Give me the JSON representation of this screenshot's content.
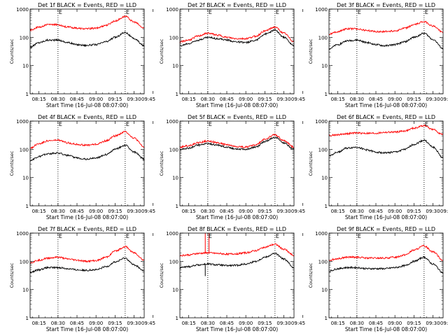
{
  "figure": {
    "ylabel": "Counts/sec",
    "xlabel": "Start Time (16-Jul-08 08:07:00)",
    "tick_labels": [
      "08:15",
      "08:30",
      "08:45",
      "09:00",
      "09:15",
      "09:30",
      "09:45"
    ],
    "y_tick_labels": [
      "1",
      "10",
      "100",
      "1000"
    ],
    "marker_letters": [
      "E",
      "E"
    ],
    "colors": {
      "events": "#000000",
      "lld": "#ff0000",
      "marker": "#000000"
    }
  },
  "chart_data": [
    {
      "type": "line",
      "title": "Det 1f BLACK = Events, RED = LLD",
      "xlim_minutes": [
        8,
        98
      ],
      "ylim": [
        1,
        1000
      ],
      "y_scale": "log",
      "dotted_lines_minutes": [
        30,
        83
      ],
      "x_ticks_minutes": [
        15,
        30,
        45,
        60,
        75,
        90,
        105
      ],
      "series": [
        {
          "name": "Events",
          "color": "#000000",
          "x_minutes": [
            8,
            15,
            22,
            30,
            38,
            45,
            52,
            60,
            68,
            75,
            83,
            90,
            98
          ],
          "values": [
            45,
            65,
            80,
            80,
            65,
            55,
            52,
            55,
            70,
            100,
            150,
            90,
            50
          ]
        },
        {
          "name": "LLD",
          "color": "#ff0000",
          "x_minutes": [
            8,
            15,
            22,
            30,
            38,
            45,
            52,
            60,
            68,
            75,
            83,
            90,
            98
          ],
          "values": [
            180,
            230,
            280,
            280,
            230,
            210,
            200,
            210,
            270,
            380,
            550,
            350,
            210
          ]
        }
      ]
    },
    {
      "type": "line",
      "title": "Det 2f BLACK = Events, RED = LLD",
      "xlim_minutes": [
        8,
        98
      ],
      "ylim": [
        1,
        1000
      ],
      "y_scale": "log",
      "dotted_lines_minutes": [
        30,
        83
      ],
      "x_ticks_minutes": [
        15,
        30,
        45,
        60,
        75,
        90,
        105
      ],
      "series": [
        {
          "name": "Events",
          "color": "#000000",
          "x_minutes": [
            8,
            15,
            22,
            30,
            38,
            45,
            52,
            60,
            68,
            75,
            83,
            90,
            98
          ],
          "values": [
            50,
            60,
            80,
            100,
            90,
            80,
            70,
            65,
            80,
            130,
            180,
            100,
            50
          ]
        },
        {
          "name": "LLD",
          "color": "#ff0000",
          "x_minutes": [
            8,
            15,
            22,
            30,
            38,
            45,
            52,
            60,
            68,
            75,
            83,
            90,
            98
          ],
          "values": [
            70,
            80,
            110,
            140,
            120,
            100,
            90,
            90,
            110,
            170,
            230,
            140,
            70
          ]
        }
      ]
    },
    {
      "type": "line",
      "title": "Det 3f BLACK = Events, RED = LLD",
      "xlim_minutes": [
        8,
        98
      ],
      "ylim": [
        1,
        1000
      ],
      "y_scale": "log",
      "dotted_lines_minutes": [
        30,
        83
      ],
      "x_ticks_minutes": [
        15,
        30,
        45,
        60,
        75,
        90,
        105
      ],
      "series": [
        {
          "name": "Events",
          "color": "#000000",
          "x_minutes": [
            8,
            15,
            22,
            30,
            38,
            45,
            52,
            60,
            68,
            75,
            83,
            90,
            98
          ],
          "values": [
            40,
            55,
            75,
            80,
            65,
            55,
            50,
            55,
            70,
            100,
            140,
            85,
            40
          ]
        },
        {
          "name": "LLD",
          "color": "#ff0000",
          "x_minutes": [
            8,
            15,
            22,
            30,
            38,
            45,
            52,
            60,
            68,
            75,
            83,
            90,
            98
          ],
          "values": [
            130,
            160,
            200,
            200,
            175,
            160,
            160,
            170,
            210,
            280,
            360,
            250,
            150
          ]
        }
      ]
    },
    {
      "type": "line",
      "title": "Det 4f BLACK = Events, RED = LLD",
      "xlim_minutes": [
        8,
        98
      ],
      "ylim": [
        1,
        1000
      ],
      "y_scale": "log",
      "dotted_lines_minutes": [
        30,
        83
      ],
      "x_ticks_minutes": [
        15,
        30,
        45,
        60,
        75,
        90,
        105
      ],
      "series": [
        {
          "name": "Events",
          "color": "#000000",
          "x_minutes": [
            8,
            15,
            22,
            30,
            38,
            45,
            52,
            60,
            68,
            75,
            83,
            90,
            98
          ],
          "values": [
            40,
            55,
            70,
            75,
            60,
            50,
            45,
            50,
            65,
            100,
            140,
            80,
            45
          ]
        },
        {
          "name": "LLD",
          "color": "#ff0000",
          "x_minutes": [
            8,
            15,
            22,
            30,
            38,
            45,
            52,
            60,
            68,
            75,
            83,
            90,
            98
          ],
          "values": [
            110,
            160,
            200,
            210,
            170,
            150,
            140,
            150,
            200,
            300,
            420,
            250,
            120
          ]
        }
      ]
    },
    {
      "type": "line",
      "title": "Det 5f BLACK = Events, RED = LLD",
      "xlim_minutes": [
        8,
        98
      ],
      "ylim": [
        1,
        1000
      ],
      "y_scale": "log",
      "dotted_lines_minutes": [
        30,
        83
      ],
      "x_ticks_minutes": [
        15,
        30,
        45,
        60,
        75,
        90,
        105
      ],
      "series": [
        {
          "name": "Events",
          "color": "#000000",
          "x_minutes": [
            8,
            15,
            22,
            30,
            38,
            45,
            52,
            60,
            68,
            75,
            83,
            90,
            98
          ],
          "values": [
            100,
            110,
            140,
            160,
            140,
            120,
            105,
            100,
            120,
            190,
            270,
            170,
            100
          ]
        },
        {
          "name": "LLD",
          "color": "#ff0000",
          "x_minutes": [
            8,
            15,
            22,
            30,
            38,
            45,
            52,
            60,
            68,
            75,
            83,
            90,
            98
          ],
          "values": [
            120,
            135,
            170,
            200,
            170,
            145,
            125,
            120,
            145,
            230,
            330,
            200,
            120
          ]
        }
      ]
    },
    {
      "type": "line",
      "title": "Det 6f BLACK = Events, RED = LLD",
      "xlim_minutes": [
        8,
        98
      ],
      "ylim": [
        1,
        1000
      ],
      "y_scale": "log",
      "dotted_lines_minutes": [
        30,
        83
      ],
      "x_ticks_minutes": [
        15,
        30,
        45,
        60,
        75,
        90,
        105
      ],
      "series": [
        {
          "name": "Events",
          "color": "#000000",
          "x_minutes": [
            8,
            15,
            22,
            30,
            38,
            45,
            52,
            60,
            68,
            75,
            83,
            90,
            98
          ],
          "values": [
            60,
            80,
            110,
            120,
            95,
            80,
            75,
            80,
            100,
            150,
            210,
            120,
            50
          ]
        },
        {
          "name": "LLD",
          "color": "#ff0000",
          "x_minutes": [
            8,
            15,
            22,
            30,
            38,
            45,
            52,
            60,
            68,
            75,
            83,
            90,
            98
          ],
          "values": [
            310,
            330,
            360,
            380,
            370,
            370,
            400,
            410,
            450,
            560,
            700,
            500,
            330
          ]
        }
      ]
    },
    {
      "type": "line",
      "title": "Det 7f BLACK = Events, RED = LLD",
      "xlim_minutes": [
        8,
        98
      ],
      "ylim": [
        1,
        1000
      ],
      "y_scale": "log",
      "dotted_lines_minutes": [
        30,
        83
      ],
      "x_ticks_minutes": [
        15,
        30,
        45,
        60,
        75,
        90,
        105
      ],
      "series": [
        {
          "name": "Events",
          "color": "#000000",
          "x_minutes": [
            8,
            15,
            22,
            30,
            38,
            45,
            52,
            60,
            68,
            75,
            83,
            90,
            98
          ],
          "values": [
            40,
            50,
            60,
            60,
            55,
            50,
            48,
            50,
            65,
            95,
            130,
            75,
            45
          ]
        },
        {
          "name": "LLD",
          "color": "#ff0000",
          "x_minutes": [
            8,
            15,
            22,
            30,
            38,
            45,
            52,
            60,
            68,
            75,
            83,
            90,
            98
          ],
          "values": [
            90,
            110,
            130,
            140,
            120,
            110,
            100,
            105,
            140,
            230,
            330,
            200,
            110
          ]
        }
      ]
    },
    {
      "type": "line",
      "title": "Det 8f BLACK = Events, RED = LLD",
      "xlim_minutes": [
        8,
        98
      ],
      "ylim": [
        1,
        1000
      ],
      "y_scale": "log",
      "dotted_lines_minutes": [
        30,
        83
      ],
      "x_ticks_minutes": [
        15,
        30,
        45,
        60,
        75,
        90,
        105
      ],
      "series": [
        {
          "name": "Events",
          "color": "#000000",
          "x_minutes": [
            8,
            15,
            22,
            30,
            38,
            45,
            52,
            60,
            68,
            75,
            83,
            90,
            98
          ],
          "values": [
            60,
            65,
            75,
            80,
            75,
            70,
            72,
            80,
            100,
            140,
            190,
            120,
            60
          ]
        },
        {
          "name": "LLD",
          "color": "#ff0000",
          "x_minutes": [
            8,
            15,
            22,
            30,
            38,
            45,
            52,
            60,
            68,
            75,
            83,
            90,
            98
          ],
          "values": [
            160,
            170,
            190,
            200,
            190,
            180,
            185,
            200,
            240,
            320,
            400,
            270,
            160
          ]
        }
      ],
      "spikes": [
        {
          "series": "LLD",
          "x_minutes": 28,
          "values": [
            190,
            1000
          ]
        },
        {
          "series": "LLD",
          "x_minutes": 31,
          "values": [
            200,
            1000
          ]
        },
        {
          "series": "Events",
          "x_minutes": 28,
          "values": [
            75,
            30
          ]
        }
      ]
    },
    {
      "type": "line",
      "title": "Det 9f BLACK = Events, RED = LLD",
      "xlim_minutes": [
        8,
        98
      ],
      "ylim": [
        1,
        1000
      ],
      "y_scale": "log",
      "dotted_lines_minutes": [
        30,
        83
      ],
      "x_ticks_minutes": [
        15,
        30,
        45,
        60,
        75,
        90,
        105
      ],
      "series": [
        {
          "name": "Events",
          "color": "#000000",
          "x_minutes": [
            8,
            15,
            22,
            30,
            38,
            45,
            52,
            60,
            68,
            75,
            83,
            90,
            98
          ],
          "values": [
            45,
            55,
            60,
            60,
            55,
            55,
            55,
            60,
            70,
            100,
            140,
            80,
            40
          ]
        },
        {
          "name": "LLD",
          "color": "#ff0000",
          "x_minutes": [
            8,
            15,
            22,
            30,
            38,
            45,
            52,
            60,
            68,
            75,
            83,
            90,
            98
          ],
          "values": [
            110,
            125,
            140,
            140,
            130,
            130,
            130,
            140,
            170,
            250,
            350,
            220,
            110
          ]
        }
      ]
    }
  ]
}
